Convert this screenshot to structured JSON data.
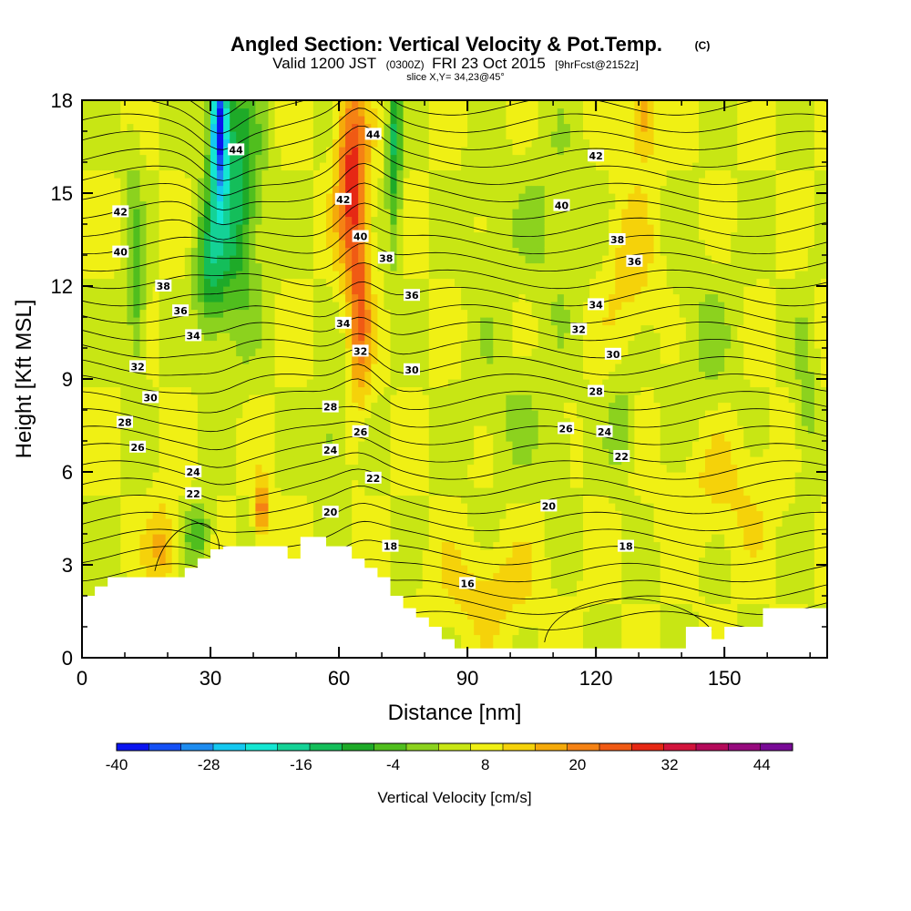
{
  "chart_data": {
    "type": "heatmap",
    "title": "Angled Section: Vertical Velocity & Pot.Temp.",
    "title_unit": "(C)",
    "subtitle": {
      "part1": "Valid 1200 JST",
      "part2": "(0300Z)",
      "part3": "FRI 23 Oct 2015",
      "part4": "[9hrFcst@2152z]"
    },
    "slice": "slice X,Y= 34,23@45°",
    "xlabel": "Distance [nm]",
    "ylabel": "Height [Kft MSL]",
    "xlim": [
      0,
      174
    ],
    "ylim": [
      0,
      18
    ],
    "xticks": [
      "0",
      "30",
      "60",
      "90",
      "120",
      "150"
    ],
    "yticks": [
      "0",
      "3",
      "6",
      "9",
      "12",
      "15",
      "18"
    ],
    "colorbar": {
      "label": "Vertical Velocity [cm/s]",
      "ticks": [
        "-40",
        "-28",
        "-16",
        "-4",
        "8",
        "20",
        "32",
        "44"
      ],
      "colors": [
        "#0a14f0",
        "#1450f5",
        "#1e8cf0",
        "#14c8f0",
        "#14e6d2",
        "#14d296",
        "#14be5a",
        "#1eaa28",
        "#50be1e",
        "#8cd21e",
        "#c8e614",
        "#f0f014",
        "#f5d20a",
        "#f5aa0a",
        "#f58214",
        "#f05a14",
        "#e62814",
        "#d2143c",
        "#b40a5a",
        "#960a7d",
        "#780a96"
      ],
      "min": -40,
      "max": 48
    },
    "terrain": [
      [
        0,
        2.0
      ],
      [
        3,
        2.0
      ],
      [
        3,
        2.3
      ],
      [
        6,
        2.3
      ],
      [
        6,
        2.6
      ],
      [
        24,
        2.6
      ],
      [
        24,
        2.9
      ],
      [
        27,
        2.9
      ],
      [
        27,
        3.2
      ],
      [
        30,
        3.2
      ],
      [
        30,
        3.5
      ],
      [
        33,
        3.5
      ],
      [
        33,
        3.6
      ],
      [
        48,
        3.6
      ],
      [
        48,
        3.2
      ],
      [
        51,
        3.2
      ],
      [
        51,
        3.9
      ],
      [
        57,
        3.9
      ],
      [
        57,
        3.6
      ],
      [
        63,
        3.6
      ],
      [
        63,
        3.2
      ],
      [
        66,
        3.2
      ],
      [
        66,
        2.9
      ],
      [
        69,
        2.9
      ],
      [
        69,
        2.6
      ],
      [
        72,
        2.6
      ],
      [
        72,
        2.0
      ],
      [
        75,
        2.0
      ],
      [
        75,
        1.6
      ],
      [
        78,
        1.6
      ],
      [
        78,
        1.3
      ],
      [
        81,
        1.3
      ],
      [
        81,
        1.0
      ],
      [
        84,
        1.0
      ],
      [
        84,
        0.6
      ],
      [
        87,
        0.6
      ],
      [
        87,
        0.3
      ],
      [
        90,
        0.3
      ],
      [
        90,
        0.3
      ],
      [
        141,
        0.3
      ],
      [
        141,
        1.0
      ],
      [
        147,
        1.0
      ],
      [
        147,
        0.6
      ],
      [
        150,
        0.6
      ],
      [
        150,
        1.0
      ],
      [
        159,
        1.0
      ],
      [
        159,
        1.6
      ],
      [
        174,
        1.6
      ]
    ],
    "contour_labels": [
      {
        "text": "44",
        "x": 36,
        "y": 16.4
      },
      {
        "text": "44",
        "x": 68,
        "y": 16.9
      },
      {
        "text": "42",
        "x": 120,
        "y": 16.2
      },
      {
        "text": "42",
        "x": 9,
        "y": 14.4
      },
      {
        "text": "42",
        "x": 61,
        "y": 14.8
      },
      {
        "text": "40",
        "x": 112,
        "y": 14.6
      },
      {
        "text": "40",
        "x": 9,
        "y": 13.1
      },
      {
        "text": "40",
        "x": 65,
        "y": 13.6
      },
      {
        "text": "38",
        "x": 125,
        "y": 13.5
      },
      {
        "text": "38",
        "x": 19,
        "y": 12.0
      },
      {
        "text": "38",
        "x": 71,
        "y": 12.9
      },
      {
        "text": "36",
        "x": 129,
        "y": 12.8
      },
      {
        "text": "36",
        "x": 23,
        "y": 11.2
      },
      {
        "text": "36",
        "x": 77,
        "y": 11.7
      },
      {
        "text": "34",
        "x": 120,
        "y": 11.4
      },
      {
        "text": "34",
        "x": 26,
        "y": 10.4
      },
      {
        "text": "34",
        "x": 61,
        "y": 10.8
      },
      {
        "text": "32",
        "x": 116,
        "y": 10.6
      },
      {
        "text": "32",
        "x": 13,
        "y": 9.4
      },
      {
        "text": "32",
        "x": 65,
        "y": 9.9
      },
      {
        "text": "30",
        "x": 124,
        "y": 9.8
      },
      {
        "text": "30",
        "x": 16,
        "y": 8.4
      },
      {
        "text": "30",
        "x": 77,
        "y": 9.3
      },
      {
        "text": "28",
        "x": 120,
        "y": 8.6
      },
      {
        "text": "28",
        "x": 10,
        "y": 7.6
      },
      {
        "text": "28",
        "x": 58,
        "y": 8.1
      },
      {
        "text": "26",
        "x": 113,
        "y": 7.4
      },
      {
        "text": "26",
        "x": 13,
        "y": 6.8
      },
      {
        "text": "26",
        "x": 65,
        "y": 7.3
      },
      {
        "text": "24",
        "x": 122,
        "y": 7.3
      },
      {
        "text": "24",
        "x": 26,
        "y": 6.0
      },
      {
        "text": "24",
        "x": 58,
        "y": 6.7
      },
      {
        "text": "22",
        "x": 126,
        "y": 6.5
      },
      {
        "text": "22",
        "x": 26,
        "y": 5.3
      },
      {
        "text": "22",
        "x": 68,
        "y": 5.8
      },
      {
        "text": "20",
        "x": 109,
        "y": 4.9
      },
      {
        "text": "20",
        "x": 58,
        "y": 4.7
      },
      {
        "text": "18",
        "x": 127,
        "y": 3.6
      },
      {
        "text": "18",
        "x": 72,
        "y": 3.6
      },
      {
        "text": "16",
        "x": 90,
        "y": 2.4
      }
    ]
  }
}
